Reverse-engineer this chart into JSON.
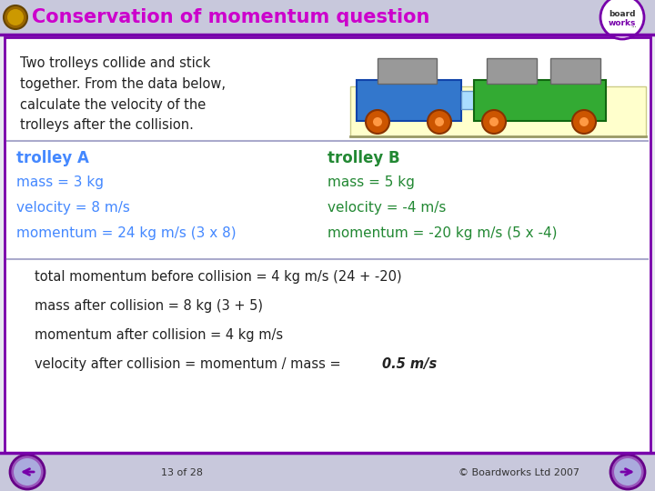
{
  "title": "Conservation of momentum question",
  "title_color": "#cc00cc",
  "header_bg": "#c8c8dc",
  "body_bg": "#e8e8f0",
  "border_color": "#7700aa",
  "intro_text": "Two trolleys collide and stick\ntogether. From the data below,\ncalculate the velocity of the\ntrolleys after the collision.",
  "trolley_a_label": "trolley A",
  "trolley_b_label": "trolley B",
  "trolley_a_color": "#4488ff",
  "trolley_b_color": "#228833",
  "trolley_a_mass": "mass = 3 kg",
  "trolley_a_velocity": "velocity = 8 m/s",
  "trolley_a_momentum": "momentum = 24 kg m/s (3 x 8)",
  "trolley_b_mass": "mass = 5 kg",
  "trolley_b_velocity": "velocity = -4 m/s",
  "trolley_b_momentum": "momentum = -20 kg m/s (5 x -4)",
  "line1": "total momentum before collision = 4 kg m/s (24 + -20)",
  "line2": "mass after collision = 8 kg (3 + 5)",
  "line3": "momentum after collision = 4 kg m/s",
  "line4_plain": "velocity after collision = momentum / mass = ",
  "line4_bold": "0.5 m/s",
  "footer_left": "13 of 28",
  "footer_right": "© Boardworks Ltd 2007",
  "text_color_dark": "#222222"
}
